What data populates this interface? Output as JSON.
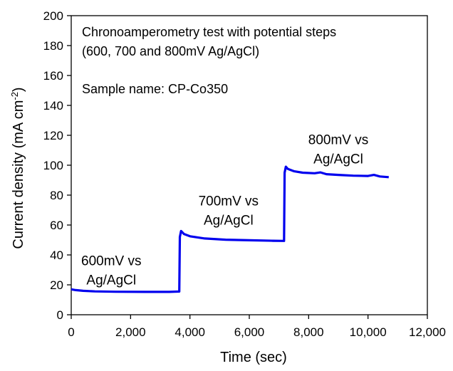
{
  "chart_data": {
    "type": "line",
    "title_lines": [
      "Chronoamperometry test with potential steps",
      "(600, 700 and 800mV Ag/AgCl)"
    ],
    "sample_label": "Sample name: CP-Co350",
    "xlabel": "Time (sec)",
    "ylabel_main": "Current density (mA cm",
    "ylabel_sup": "-2",
    "ylabel_end": ")",
    "xlim": [
      0,
      12000
    ],
    "ylim": [
      0,
      200
    ],
    "x_ticks": [
      0,
      2000,
      4000,
      6000,
      8000,
      10000,
      12000
    ],
    "x_tick_labels": [
      "0",
      "2,000",
      "4,000",
      "6,000",
      "8,000",
      "10,000",
      "12,000"
    ],
    "y_ticks": [
      0,
      20,
      40,
      60,
      80,
      100,
      120,
      140,
      160,
      180,
      200
    ],
    "y_tick_labels": [
      "0",
      "20",
      "40",
      "60",
      "80",
      "100",
      "120",
      "140",
      "160",
      "180",
      "200"
    ],
    "grid": false,
    "series": [
      {
        "color": "#0000ee",
        "x": [
          0,
          150,
          400,
          800,
          1500,
          2500,
          3300,
          3640,
          3660,
          3700,
          3800,
          4000,
          4500,
          5200,
          6000,
          6800,
          7170,
          7190,
          7230,
          7300,
          7500,
          7800,
          8200,
          8400,
          8600,
          9000,
          9500,
          10000,
          10200,
          10400,
          10700
        ],
        "y": [
          17,
          16.5,
          16,
          15.6,
          15.4,
          15.3,
          15.3,
          15.5,
          52,
          56,
          54,
          52.5,
          51,
          50.2,
          49.8,
          49.5,
          49.4,
          95,
          99,
          97.5,
          96,
          95,
          94.6,
          95.2,
          94,
          93.5,
          93,
          92.8,
          93.5,
          92.5,
          92
        ]
      }
    ],
    "annotations": [
      {
        "lines": [
          "600mV vs",
          "Ag/AgCl"
        ],
        "x": 1350,
        "y": 33
      },
      {
        "lines": [
          "700mV vs",
          "Ag/AgCl"
        ],
        "x": 5300,
        "y": 73
      },
      {
        "lines": [
          "800mV vs",
          "Ag/AgCl"
        ],
        "x": 9000,
        "y": 114
      }
    ]
  }
}
